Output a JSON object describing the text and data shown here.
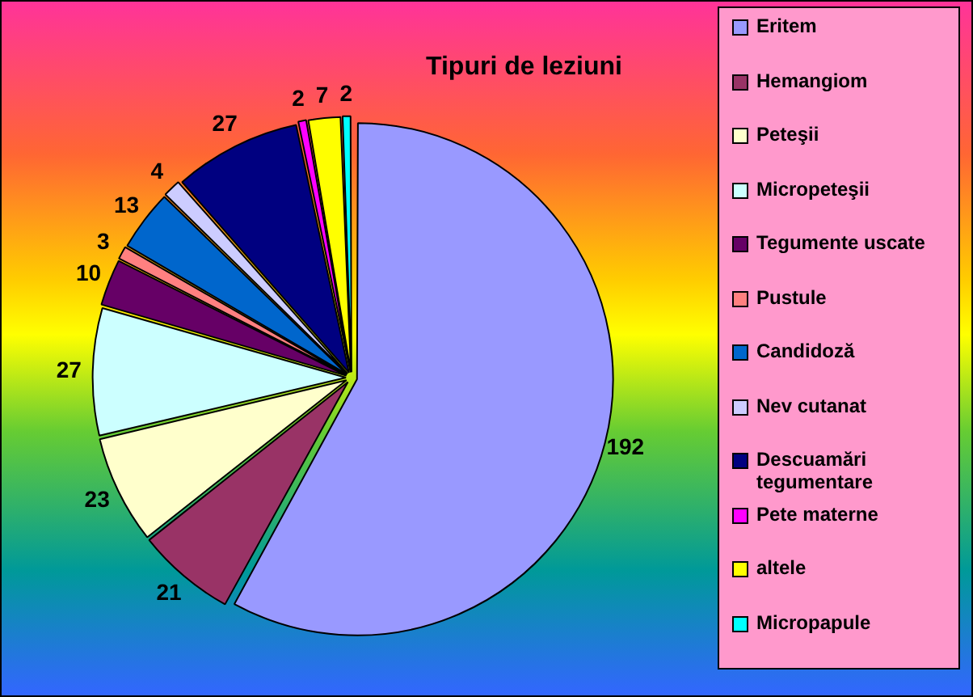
{
  "chart_data": {
    "type": "pie",
    "title": "Tipuri de leziuni",
    "categories": [
      "Eritem",
      "Hemangiom",
      "Peteşii",
      "Micropeteşii",
      "Tegumente uscate",
      "Pustule",
      "Candidoză",
      "Nev cutanat",
      "Descuamări tegumentare",
      "Pete materne",
      "altele",
      "Micropapule"
    ],
    "values": [
      192,
      21,
      23,
      27,
      10,
      3,
      13,
      4,
      27,
      2,
      7,
      2
    ],
    "colors": [
      "#9999ff",
      "#993366",
      "#ffffcc",
      "#ccffff",
      "#660066",
      "#ff8080",
      "#0066cc",
      "#ccccff",
      "#000080",
      "#ff00ff",
      "#ffff00",
      "#00ffff"
    ],
    "data_labels": true,
    "legend": "right"
  }
}
